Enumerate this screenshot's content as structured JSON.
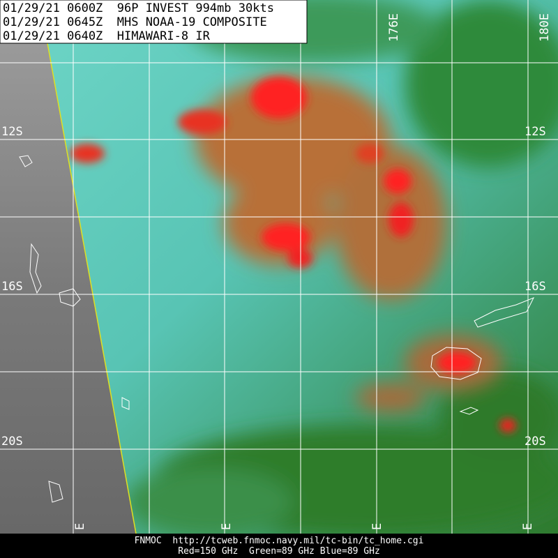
{
  "header": {
    "lines": [
      "01/29/21 0600Z  96P INVEST 994mb 30kts",
      "01/29/21 0645Z  MHS NOAA-19 COMPOSITE",
      "01/29/21 0640Z  HIMAWARI-8 IR"
    ]
  },
  "grid_labels": {
    "latitudes": [
      "12S",
      "16S",
      "20S"
    ],
    "longitudes_top": [
      "176E",
      "180E"
    ],
    "longitudes_bottom": [
      "E",
      "E",
      "E",
      "E"
    ]
  },
  "footer": {
    "lines": [
      "FNMOC  http://tcweb.fnmoc.navy.mil/tc-bin/tc_home.cgi",
      "Red=150 GHz  Green=89 GHz Blue=89 GHz"
    ]
  }
}
